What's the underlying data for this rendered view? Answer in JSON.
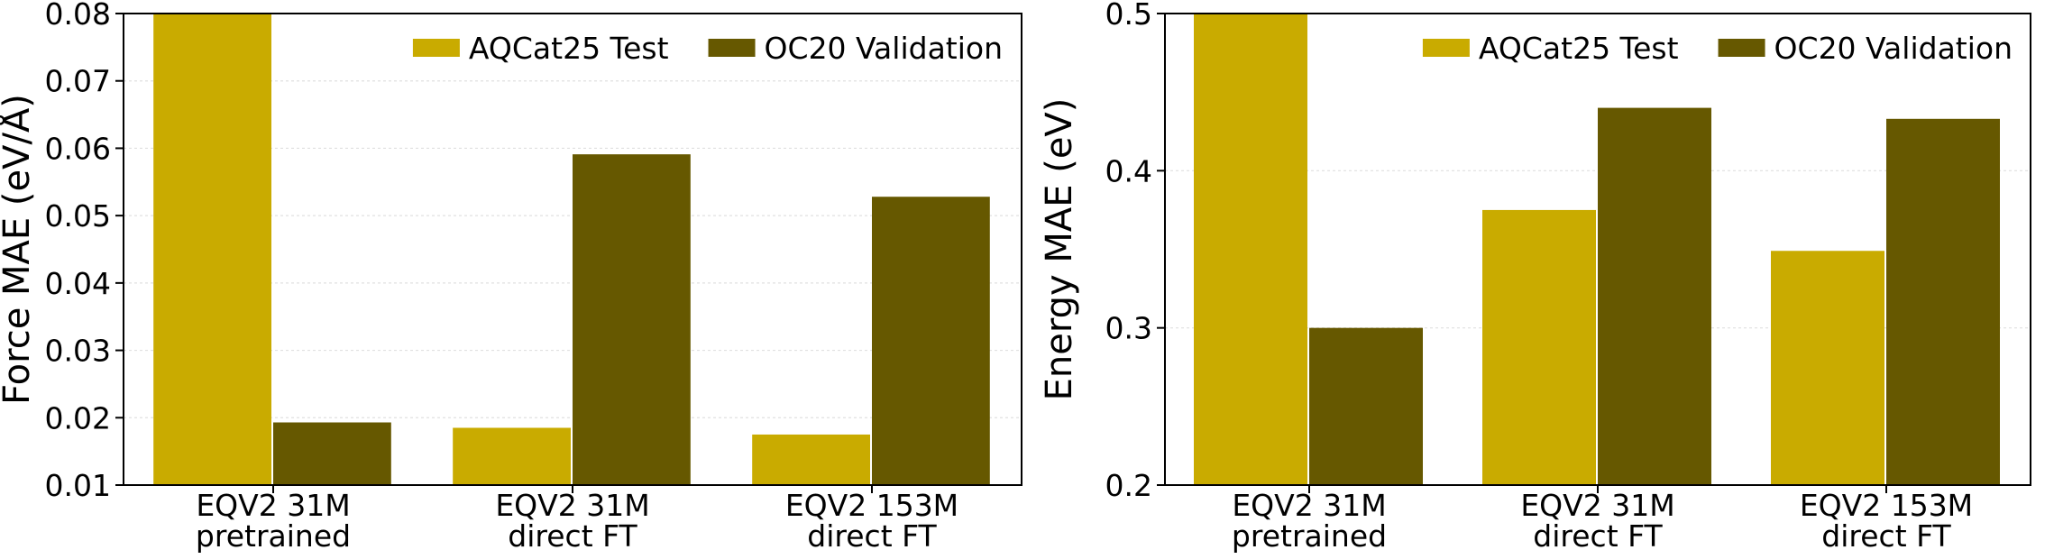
{
  "chart_data": [
    {
      "type": "bar",
      "ylabel": "Force MAE (eV/Å)",
      "ylim": [
        0.01,
        0.08
      ],
      "yticks": [
        "0.01",
        "0.02",
        "0.03",
        "0.04",
        "0.05",
        "0.06",
        "0.07",
        "0.08"
      ],
      "categories": [
        [
          "EQV2 31M",
          "pretrained"
        ],
        [
          "EQV2 31M",
          "direct FT"
        ],
        [
          "EQV2 153M",
          "direct FT"
        ]
      ],
      "series": [
        {
          "name": "AQCat25 Test",
          "color": "#c9ab00",
          "values": [
            0.082,
            0.0185,
            0.0175
          ]
        },
        {
          "name": "OC20 Validation",
          "color": "#665800",
          "values": [
            0.0193,
            0.0591,
            0.0528
          ]
        }
      ],
      "grid": true,
      "legend": "top-right"
    },
    {
      "type": "bar",
      "ylabel": "Energy MAE (eV)",
      "ylim": [
        0.2,
        0.5
      ],
      "yticks": [
        "0.2",
        "0.3",
        "0.4",
        "0.5"
      ],
      "categories": [
        [
          "EQV2 31M",
          "pretrained"
        ],
        [
          "EQV2 31M",
          "direct FT"
        ],
        [
          "EQV2 153M",
          "direct FT"
        ]
      ],
      "series": [
        {
          "name": "AQCat25 Test",
          "color": "#c9ab00",
          "values": [
            0.52,
            0.375,
            0.349
          ]
        },
        {
          "name": "OC20 Validation",
          "color": "#665800",
          "values": [
            0.3,
            0.44,
            0.433
          ]
        }
      ],
      "grid": true,
      "legend": "top-right"
    }
  ]
}
